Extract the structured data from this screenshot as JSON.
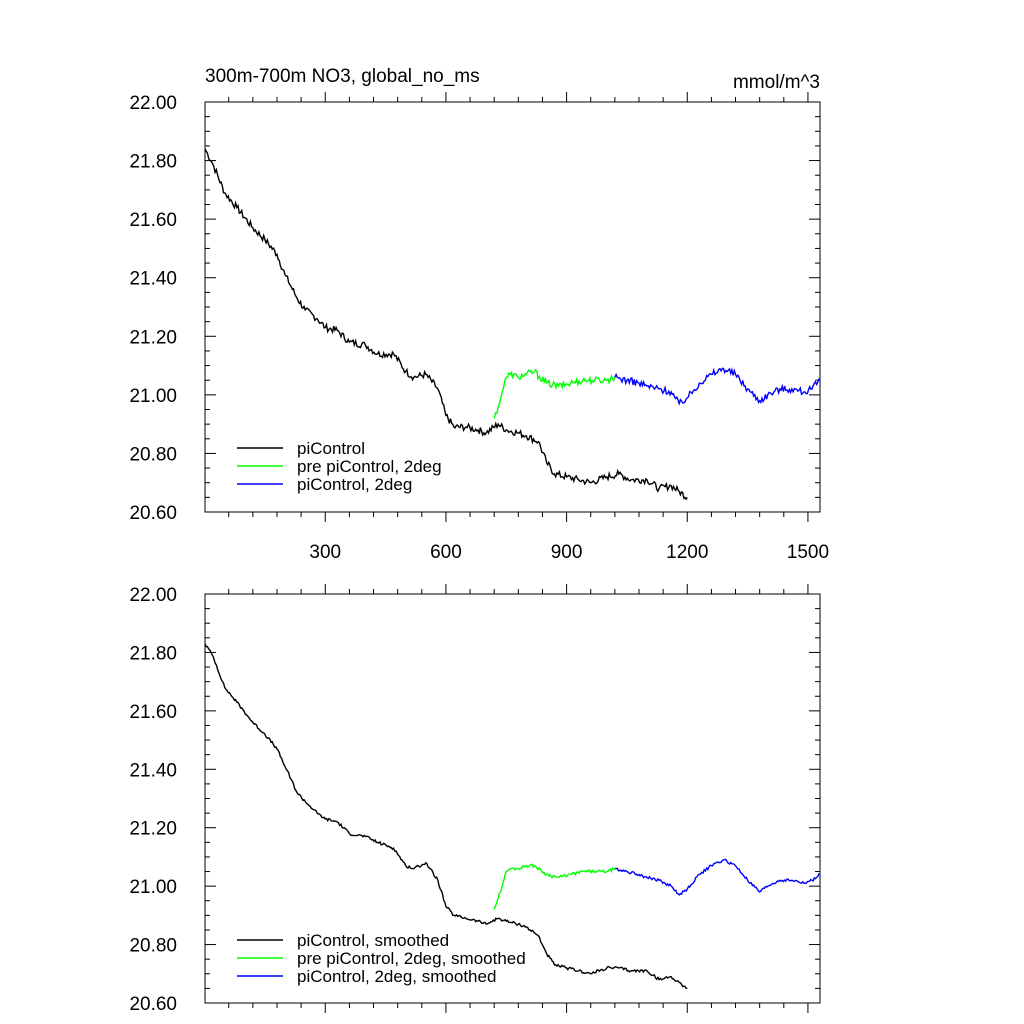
{
  "chart_data": [
    {
      "type": "line",
      "title_left": "300m-700m NO3, global_no_ms",
      "title_right": "mmol/m^3",
      "xlim": [
        1,
        1530
      ],
      "ylim": [
        20.6,
        22.0
      ],
      "x_ticks": [
        300,
        600,
        900,
        1200,
        1500
      ],
      "x_tick_labels": [
        "300",
        "600",
        "900",
        "1200",
        "1500"
      ],
      "y_ticks": [
        20.6,
        20.8,
        21.0,
        21.2,
        21.4,
        21.6,
        21.8,
        22.0
      ],
      "y_tick_labels": [
        "20.60",
        "20.80",
        "21.00",
        "21.20",
        "21.40",
        "21.60",
        "21.80",
        "22.00"
      ],
      "legend_position": "bottom-left",
      "series": [
        {
          "name": "piControl",
          "color": "#000000",
          "x": [
            1,
            20,
            50,
            80,
            120,
            150,
            180,
            200,
            230,
            250,
            280,
            300,
            330,
            360,
            400,
            430,
            470,
            500,
            520,
            550,
            580,
            600,
            620,
            650,
            680,
            700,
            730,
            750,
            780,
            800,
            830,
            850,
            870,
            900,
            930,
            960,
            1000,
            1030,
            1060,
            1100,
            1130,
            1160,
            1180,
            1200
          ],
          "y": [
            21.84,
            21.79,
            21.69,
            21.64,
            21.57,
            21.53,
            21.48,
            21.41,
            21.33,
            21.29,
            21.26,
            21.23,
            21.22,
            21.18,
            21.17,
            21.14,
            21.14,
            21.08,
            21.06,
            21.07,
            21.02,
            20.93,
            20.89,
            20.89,
            20.88,
            20.87,
            20.9,
            20.88,
            20.87,
            20.86,
            20.84,
            20.77,
            20.73,
            20.72,
            20.71,
            20.7,
            20.72,
            20.73,
            20.71,
            20.71,
            20.68,
            20.69,
            20.67,
            20.65
          ]
        },
        {
          "name": "pre piControl, 2deg",
          "color": "#00ff00",
          "x": [
            720,
            730,
            740,
            750,
            760,
            780,
            800,
            820,
            850,
            880,
            910,
            940,
            970,
            1000,
            1020
          ],
          "y": [
            20.92,
            20.96,
            21.01,
            21.06,
            21.07,
            21.06,
            21.07,
            21.08,
            21.04,
            21.03,
            21.04,
            21.05,
            21.05,
            21.05,
            21.06
          ]
        },
        {
          "name": "piControl, 2deg",
          "color": "#0000ff",
          "x": [
            1020,
            1050,
            1080,
            1100,
            1130,
            1160,
            1180,
            1200,
            1230,
            1260,
            1290,
            1320,
            1350,
            1380,
            1400,
            1430,
            1460,
            1490,
            1510,
            1530
          ],
          "y": [
            21.06,
            21.05,
            21.04,
            21.03,
            21.02,
            21.01,
            20.97,
            20.99,
            21.04,
            21.07,
            21.09,
            21.07,
            21.02,
            20.98,
            21.0,
            21.02,
            21.02,
            21.01,
            21.02,
            21.05
          ]
        }
      ]
    },
    {
      "type": "line",
      "xlim": [
        1,
        1530
      ],
      "ylim": [
        20.6,
        22.0
      ],
      "x_ticks": [
        300,
        600,
        900,
        1200,
        1500
      ],
      "y_ticks": [
        20.6,
        20.8,
        21.0,
        21.2,
        21.4,
        21.6,
        21.8,
        22.0
      ],
      "y_tick_labels": [
        "20.60",
        "20.80",
        "21.00",
        "21.20",
        "21.40",
        "21.60",
        "21.80",
        "22.00"
      ],
      "legend_position": "bottom-left",
      "series": [
        {
          "name": "piControl, smoothed",
          "color": "#000000",
          "x": [
            1,
            20,
            50,
            80,
            120,
            150,
            180,
            200,
            230,
            250,
            280,
            300,
            330,
            360,
            400,
            430,
            470,
            500,
            520,
            550,
            580,
            600,
            620,
            650,
            680,
            700,
            730,
            750,
            780,
            800,
            830,
            850,
            870,
            900,
            930,
            960,
            1000,
            1030,
            1060,
            1100,
            1130,
            1160,
            1180,
            1200
          ],
          "y": [
            21.83,
            21.79,
            21.68,
            21.63,
            21.56,
            21.52,
            21.47,
            21.41,
            21.32,
            21.29,
            21.25,
            21.23,
            21.22,
            21.18,
            21.17,
            21.15,
            21.13,
            21.07,
            21.06,
            21.08,
            21.02,
            20.93,
            20.9,
            20.89,
            20.88,
            20.87,
            20.89,
            20.88,
            20.87,
            20.86,
            20.83,
            20.77,
            20.73,
            20.72,
            20.71,
            20.7,
            20.72,
            20.72,
            20.71,
            20.71,
            20.68,
            20.69,
            20.67,
            20.65
          ]
        },
        {
          "name": "pre piControl, 2deg, smoothed",
          "color": "#00ff00",
          "x": [
            720,
            730,
            740,
            750,
            760,
            780,
            800,
            820,
            850,
            880,
            910,
            940,
            970,
            1000,
            1020
          ],
          "y": [
            20.92,
            20.96,
            21.0,
            21.05,
            21.06,
            21.06,
            21.07,
            21.07,
            21.04,
            21.03,
            21.04,
            21.05,
            21.05,
            21.05,
            21.06
          ]
        },
        {
          "name": "piControl, 2deg, smoothed",
          "color": "#0000ff",
          "x": [
            1020,
            1050,
            1080,
            1100,
            1130,
            1160,
            1180,
            1200,
            1230,
            1260,
            1290,
            1320,
            1350,
            1380,
            1400,
            1430,
            1460,
            1490,
            1510,
            1530
          ],
          "y": [
            21.06,
            21.05,
            21.04,
            21.03,
            21.02,
            21.0,
            20.97,
            20.99,
            21.04,
            21.07,
            21.09,
            21.07,
            21.02,
            20.98,
            21.0,
            21.02,
            21.02,
            21.01,
            21.02,
            21.04
          ]
        }
      ]
    }
  ]
}
